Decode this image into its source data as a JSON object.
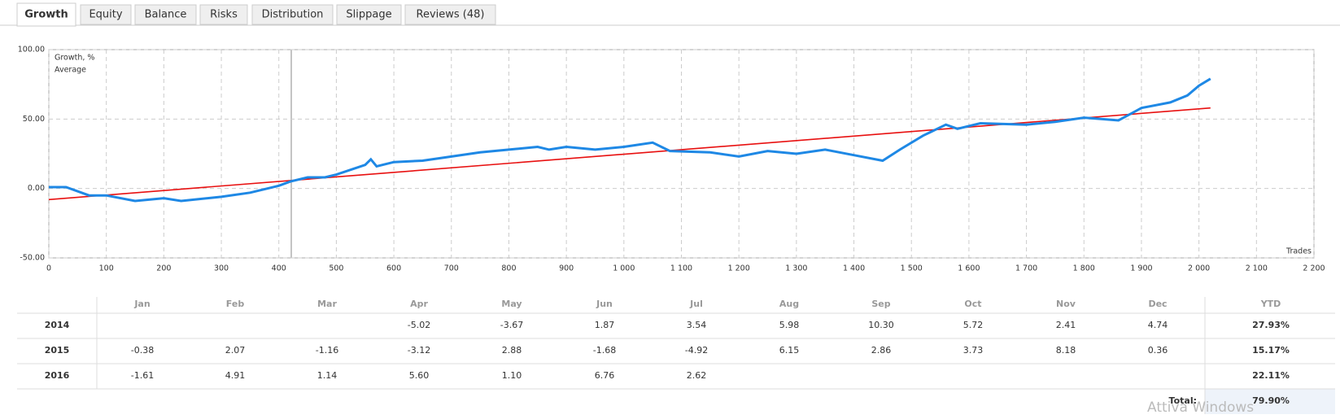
{
  "tabs": [
    "Growth",
    "Equity",
    "Balance",
    "Risks",
    "Distribution",
    "Slippage",
    "Reviews (48)"
  ],
  "chart_data": {
    "type": "line",
    "x_label": "Trades",
    "xlim": [
      0,
      2200
    ],
    "xticks": [
      0,
      100,
      200,
      300,
      400,
      500,
      600,
      700,
      800,
      900,
      {
        "value": 1000,
        "label": "1 000"
      },
      {
        "value": 1100,
        "label": "1 100"
      },
      {
        "value": 1200,
        "label": "1 200"
      },
      {
        "value": 1300,
        "label": "1 300"
      },
      {
        "value": 1400,
        "label": "1 400"
      },
      {
        "value": 1500,
        "label": "1 500"
      },
      {
        "value": 1600,
        "label": "1 600"
      },
      {
        "value": 1700,
        "label": "1 700"
      },
      {
        "value": 1800,
        "label": "1 800"
      },
      {
        "value": 1900,
        "label": "1 900"
      },
      {
        "value": 2000,
        "label": "2 000"
      },
      {
        "value": 2100,
        "label": "2 100"
      },
      {
        "value": 2200,
        "label": "2 200"
      }
    ],
    "ylim": [
      -50,
      100
    ],
    "yticks": [
      {
        "value": -50,
        "label": "-50.00"
      },
      {
        "value": 0,
        "label": "0.00"
      },
      {
        "value": 50,
        "label": "50.00"
      },
      {
        "value": 100,
        "label": "100.00"
      }
    ],
    "grid": true,
    "legend": "top-left",
    "series": [
      {
        "name": "Growth, %",
        "color": "#1e88e5",
        "x": [
          0,
          30,
          70,
          100,
          150,
          200,
          230,
          300,
          350,
          400,
          420,
          450,
          480,
          500,
          550,
          560,
          570,
          600,
          650,
          700,
          750,
          800,
          850,
          870,
          900,
          950,
          1000,
          1050,
          1080,
          1150,
          1200,
          1250,
          1300,
          1350,
          1400,
          1450,
          1480,
          1520,
          1560,
          1580,
          1620,
          1700,
          1750,
          1800,
          1830,
          1860,
          1900,
          1950,
          1980,
          2000,
          2020
        ],
        "values": [
          1,
          1,
          -5,
          -5,
          -9,
          -7,
          -9,
          -6,
          -3,
          2,
          5,
          8,
          8,
          10,
          17,
          21,
          16,
          19,
          20,
          23,
          26,
          28,
          30,
          28,
          30,
          28,
          30,
          33,
          27,
          26,
          23,
          27,
          25,
          28,
          24,
          20,
          28,
          38,
          46,
          43,
          47,
          46,
          48,
          51,
          50,
          49,
          58,
          62,
          67,
          74,
          79
        ]
      },
      {
        "name": "Average",
        "color": "#e81010",
        "x": [
          0,
          2020
        ],
        "values": [
          -8,
          58
        ]
      }
    ]
  },
  "table": {
    "header": [
      "Jan",
      "Feb",
      "Mar",
      "Apr",
      "May",
      "Jun",
      "Jul",
      "Aug",
      "Sep",
      "Oct",
      "Nov",
      "Dec",
      "YTD"
    ],
    "rows": [
      [
        "2014",
        null,
        null,
        null,
        "-5.02",
        "-3.67",
        "1.87",
        "3.54",
        "5.98",
        "10.30",
        "5.72",
        "2.41",
        "4.74",
        "27.93%"
      ],
      [
        "2015",
        "-0.38",
        "2.07",
        "-1.16",
        "-3.12",
        "2.88",
        "-1.68",
        "-4.92",
        "6.15",
        "2.86",
        "3.73",
        "8.18",
        "0.36",
        "15.17%"
      ],
      [
        "2016",
        "-1.61",
        "4.91",
        "1.14",
        "5.60",
        "1.10",
        "6.76",
        "2.62",
        null,
        null,
        null,
        null,
        null,
        "22.11%"
      ]
    ],
    "total_label": "Total:",
    "total_value": "79.90%"
  },
  "watermark": "Attiva Windows"
}
